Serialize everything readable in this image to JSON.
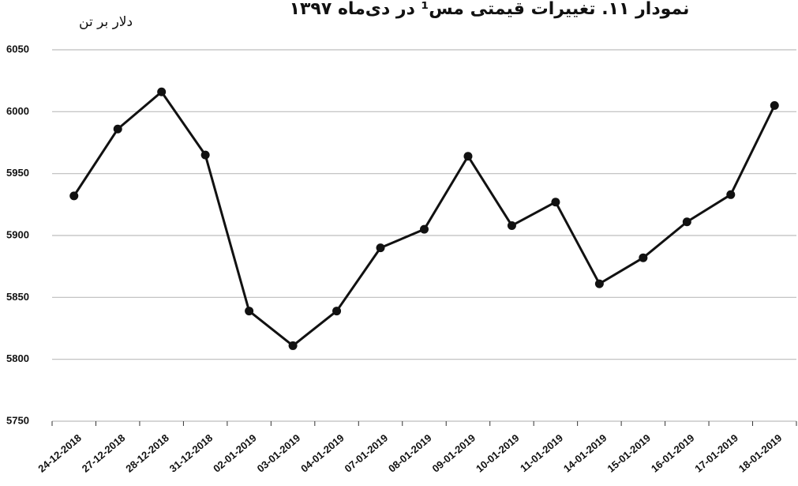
{
  "chart_data": {
    "type": "line",
    "title": "نمودار ۱۱. تغییرات قیمتی مس¹ در دی‌ماه ۱۳۹۷",
    "y_label": "دلار بر تن",
    "categories": [
      "24-12-2018",
      "27-12-2018",
      "28-12-2018",
      "31-12-2018",
      "02-01-2019",
      "03-01-2019",
      "04-01-2019",
      "07-01-2019",
      "08-01-2019",
      "09-01-2019",
      "10-01-2019",
      "11-01-2019",
      "14-01-2019",
      "15-01-2019",
      "16-01-2019",
      "17-01-2019",
      "18-01-2019"
    ],
    "values": [
      5932,
      5986,
      6016,
      5965,
      5839,
      5811,
      5839,
      5890,
      5905,
      5964,
      5908,
      5927,
      5861,
      5882,
      5911,
      5933,
      6005
    ],
    "color": "#111111",
    "ylim": [
      5750,
      6050
    ],
    "yticks": [
      5750,
      5800,
      5850,
      5900,
      5950,
      6000,
      6050
    ],
    "grid": true
  }
}
